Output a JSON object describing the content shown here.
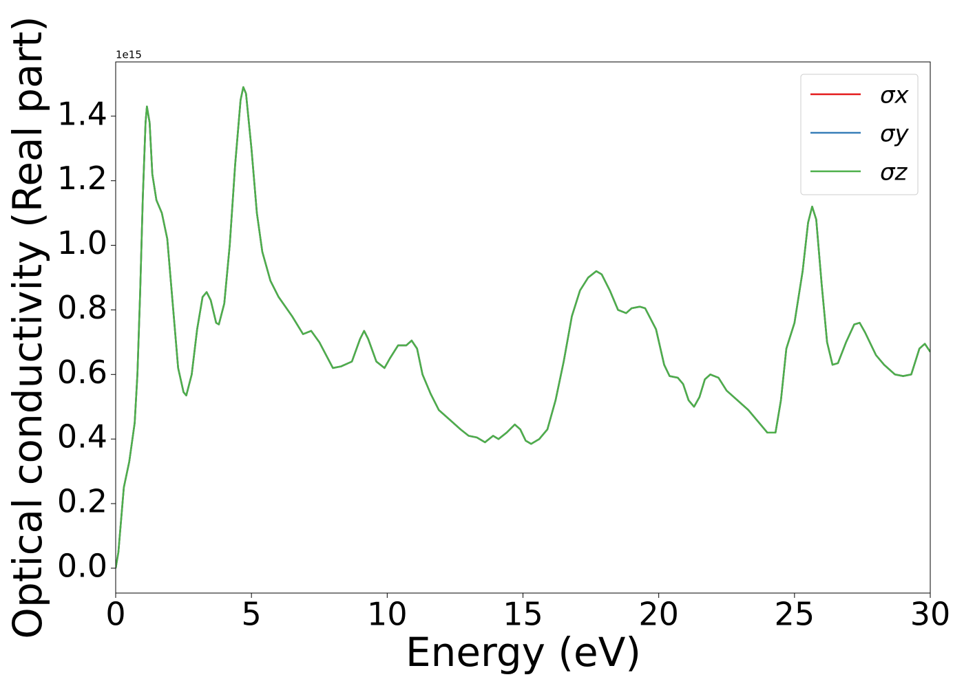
{
  "chart_data": {
    "type": "line",
    "xlabel": "Energy (eV)",
    "ylabel": "Optical conductivity (Real part)",
    "offset_text": "1e15",
    "xlim": [
      0,
      30
    ],
    "ylim": [
      -0.077,
      1.568
    ],
    "xticks": [
      0,
      5,
      10,
      15,
      20,
      25,
      30
    ],
    "yticks": [
      {
        "value": 0,
        "label": "0.0"
      },
      0.2,
      0.4,
      0.6,
      0.8,
      {
        "value": 1,
        "label": "1.0"
      },
      1.2,
      1.4
    ],
    "grid": false,
    "legend": "upper right",
    "x": [
      0,
      0.1,
      0.2,
      0.3,
      0.5,
      0.7,
      0.8,
      0.9,
      1.0,
      1.1,
      1.15,
      1.25,
      1.35,
      1.5,
      1.7,
      1.9,
      2.1,
      2.3,
      2.5,
      2.6,
      2.8,
      3.0,
      3.2,
      3.35,
      3.5,
      3.7,
      3.8,
      4.0,
      4.2,
      4.4,
      4.6,
      4.7,
      4.8,
      5.0,
      5.2,
      5.4,
      5.7,
      6.0,
      6.5,
      6.9,
      7.2,
      7.5,
      8.0,
      8.3,
      8.7,
      9.0,
      9.15,
      9.3,
      9.6,
      9.9,
      10.1,
      10.4,
      10.7,
      10.9,
      11.1,
      11.3,
      11.6,
      11.9,
      12.3,
      12.7,
      13.0,
      13.3,
      13.6,
      13.9,
      14.1,
      14.4,
      14.7,
      14.9,
      15.1,
      15.3,
      15.6,
      15.9,
      16.2,
      16.5,
      16.8,
      17.1,
      17.4,
      17.7,
      17.9,
      18.2,
      18.5,
      18.8,
      19.0,
      19.3,
      19.5,
      19.9,
      20.2,
      20.4,
      20.7,
      20.9,
      21.1,
      21.3,
      21.5,
      21.7,
      21.9,
      22.2,
      22.5,
      22.9,
      23.3,
      23.7,
      24.0,
      24.3,
      24.5,
      24.7,
      25.0,
      25.3,
      25.5,
      25.65,
      25.8,
      26.0,
      26.2,
      26.4,
      26.6,
      26.9,
      27.2,
      27.4,
      27.6,
      28.0,
      28.3,
      28.7,
      29.0,
      29.3,
      29.6,
      29.8,
      30.0
    ],
    "series": [
      {
        "name": "σx",
        "color": "#e41a1c",
        "values": [
          0.0,
          0.05,
          0.15,
          0.25,
          0.33,
          0.45,
          0.6,
          0.85,
          1.15,
          1.38,
          1.43,
          1.38,
          1.22,
          1.14,
          1.1,
          1.02,
          0.82,
          0.62,
          0.545,
          0.535,
          0.6,
          0.74,
          0.84,
          0.855,
          0.83,
          0.76,
          0.755,
          0.82,
          1.0,
          1.25,
          1.45,
          1.49,
          1.47,
          1.3,
          1.1,
          0.98,
          0.89,
          0.84,
          0.78,
          0.725,
          0.735,
          0.7,
          0.62,
          0.625,
          0.64,
          0.71,
          0.735,
          0.71,
          0.64,
          0.62,
          0.65,
          0.69,
          0.69,
          0.705,
          0.68,
          0.6,
          0.54,
          0.49,
          0.46,
          0.43,
          0.41,
          0.405,
          0.39,
          0.41,
          0.4,
          0.42,
          0.445,
          0.43,
          0.395,
          0.385,
          0.4,
          0.43,
          0.52,
          0.64,
          0.78,
          0.86,
          0.9,
          0.92,
          0.91,
          0.86,
          0.8,
          0.79,
          0.805,
          0.81,
          0.805,
          0.74,
          0.63,
          0.595,
          0.59,
          0.57,
          0.52,
          0.5,
          0.53,
          0.585,
          0.6,
          0.59,
          0.55,
          0.52,
          0.49,
          0.45,
          0.42,
          0.42,
          0.52,
          0.68,
          0.76,
          0.92,
          1.07,
          1.12,
          1.08,
          0.88,
          0.7,
          0.63,
          0.635,
          0.7,
          0.755,
          0.76,
          0.73,
          0.66,
          0.63,
          0.6,
          0.595,
          0.6,
          0.68,
          0.695,
          0.67
        ]
      },
      {
        "name": "σy",
        "color": "#377eb8",
        "values": [
          0.0,
          0.05,
          0.15,
          0.25,
          0.33,
          0.45,
          0.6,
          0.85,
          1.15,
          1.38,
          1.43,
          1.38,
          1.22,
          1.14,
          1.1,
          1.02,
          0.82,
          0.62,
          0.545,
          0.535,
          0.6,
          0.74,
          0.84,
          0.855,
          0.83,
          0.76,
          0.755,
          0.82,
          1.0,
          1.25,
          1.45,
          1.49,
          1.47,
          1.3,
          1.1,
          0.98,
          0.89,
          0.84,
          0.78,
          0.725,
          0.735,
          0.7,
          0.62,
          0.625,
          0.64,
          0.71,
          0.735,
          0.71,
          0.64,
          0.62,
          0.65,
          0.69,
          0.69,
          0.705,
          0.68,
          0.6,
          0.54,
          0.49,
          0.46,
          0.43,
          0.41,
          0.405,
          0.39,
          0.41,
          0.4,
          0.42,
          0.445,
          0.43,
          0.395,
          0.385,
          0.4,
          0.43,
          0.52,
          0.64,
          0.78,
          0.86,
          0.9,
          0.92,
          0.91,
          0.86,
          0.8,
          0.79,
          0.805,
          0.81,
          0.805,
          0.74,
          0.63,
          0.595,
          0.59,
          0.57,
          0.52,
          0.5,
          0.53,
          0.585,
          0.6,
          0.59,
          0.55,
          0.52,
          0.49,
          0.45,
          0.42,
          0.42,
          0.52,
          0.68,
          0.76,
          0.92,
          1.07,
          1.12,
          1.08,
          0.88,
          0.7,
          0.63,
          0.635,
          0.7,
          0.755,
          0.76,
          0.73,
          0.66,
          0.63,
          0.6,
          0.595,
          0.6,
          0.68,
          0.695,
          0.67
        ]
      },
      {
        "name": "σz",
        "color": "#4daf4a",
        "values": [
          0.0,
          0.05,
          0.15,
          0.25,
          0.33,
          0.45,
          0.6,
          0.85,
          1.15,
          1.38,
          1.43,
          1.38,
          1.22,
          1.14,
          1.1,
          1.02,
          0.82,
          0.62,
          0.545,
          0.535,
          0.6,
          0.74,
          0.84,
          0.855,
          0.83,
          0.76,
          0.755,
          0.82,
          1.0,
          1.25,
          1.45,
          1.49,
          1.47,
          1.3,
          1.1,
          0.98,
          0.89,
          0.84,
          0.78,
          0.725,
          0.735,
          0.7,
          0.62,
          0.625,
          0.64,
          0.71,
          0.735,
          0.71,
          0.64,
          0.62,
          0.65,
          0.69,
          0.69,
          0.705,
          0.68,
          0.6,
          0.54,
          0.49,
          0.46,
          0.43,
          0.41,
          0.405,
          0.39,
          0.41,
          0.4,
          0.42,
          0.445,
          0.43,
          0.395,
          0.385,
          0.4,
          0.43,
          0.52,
          0.64,
          0.78,
          0.86,
          0.9,
          0.92,
          0.91,
          0.86,
          0.8,
          0.79,
          0.805,
          0.81,
          0.805,
          0.74,
          0.63,
          0.595,
          0.59,
          0.57,
          0.52,
          0.5,
          0.53,
          0.585,
          0.6,
          0.59,
          0.55,
          0.52,
          0.49,
          0.45,
          0.42,
          0.42,
          0.52,
          0.68,
          0.76,
          0.92,
          1.07,
          1.12,
          1.08,
          0.88,
          0.7,
          0.63,
          0.635,
          0.7,
          0.755,
          0.76,
          0.73,
          0.66,
          0.63,
          0.6,
          0.595,
          0.6,
          0.68,
          0.695,
          0.67
        ]
      }
    ]
  }
}
